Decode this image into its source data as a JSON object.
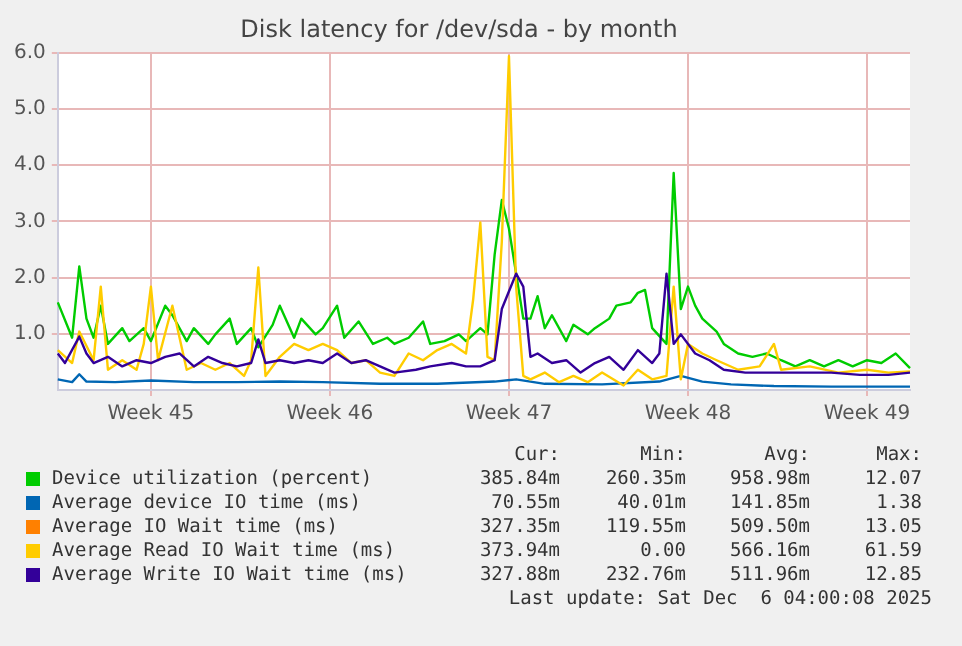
{
  "chart_data": {
    "type": "line",
    "title": "Disk latency for /dev/sda - by month",
    "categories": [
      null,
      null,
      null,
      null,
      null,
      null,
      null,
      null,
      null,
      null,
      null,
      null,
      null,
      "Week 45",
      null,
      null,
      null,
      null,
      null,
      null,
      null,
      null,
      null,
      null,
      null,
      null,
      null,
      null,
      null,
      null,
      null,
      null,
      null,
      null,
      null,
      null,
      null,
      null,
      "Week 46",
      null,
      null,
      null,
      null,
      null,
      null,
      null,
      null,
      null,
      null,
      null,
      null,
      null,
      null,
      null,
      null,
      null,
      null,
      null,
      null,
      null,
      null,
      null,
      null,
      "Week 47",
      null,
      null,
      null,
      null,
      null,
      null,
      null,
      null,
      null,
      null,
      null,
      null,
      null,
      null,
      null,
      null,
      null,
      null,
      null,
      null,
      null,
      null,
      null,
      null,
      "Week 48",
      null,
      null,
      null,
      null,
      null,
      null,
      null,
      null,
      null,
      null,
      null,
      null,
      null,
      null,
      null,
      null,
      null,
      null,
      null,
      null,
      null,
      null,
      null,
      null,
      "Week 49",
      null,
      null,
      null,
      null,
      null,
      null
    ],
    "ylim": [
      0,
      6
    ],
    "yticks": [
      {
        "value": 1,
        "label": "1.0"
      },
      {
        "value": 2,
        "label": "2.0"
      },
      {
        "value": 3,
        "label": "3.0"
      },
      {
        "value": 4,
        "label": "4.0"
      },
      {
        "value": 5,
        "label": "5.0"
      },
      {
        "value": 6,
        "label": "6.0"
      }
    ],
    "grid": true,
    "legend": "bottom",
    "series": [
      {
        "name": "Device utilization (percent)",
        "color": "#00cc00",
        "values": [
          1.56,
          null,
          0.93,
          2.2,
          1.27,
          0.93,
          1.5,
          0.82,
          null,
          1.1,
          0.87,
          null,
          1.1,
          0.87,
          null,
          1.5,
          1.33,
          null,
          0.87,
          1.1,
          null,
          0.82,
          0.99,
          null,
          1.27,
          0.82,
          null,
          1.1,
          0.76,
          null,
          1.16,
          1.5,
          null,
          0.93,
          1.27,
          null,
          0.99,
          1.1,
          null,
          1.5,
          0.93,
          null,
          1.22,
          null,
          0.82,
          null,
          0.93,
          0.82,
          null,
          0.93,
          null,
          1.22,
          0.82,
          null,
          0.87,
          null,
          0.99,
          0.87,
          null,
          1.1,
          0.99,
          2.41,
          3.38,
          2.87,
          2.07,
          1.27,
          1.27,
          1.67,
          1.1,
          1.33,
          null,
          0.87,
          1.16,
          null,
          0.99,
          1.1,
          null,
          1.27,
          1.5,
          null,
          1.56,
          1.73,
          1.78,
          1.1,
          null,
          0.82,
          3.86,
          1.44,
          1.84,
          1.5,
          1.27,
          null,
          1.04,
          0.82,
          null,
          0.65,
          null,
          0.59,
          null,
          0.65,
          null,
          0.53,
          null,
          0.42,
          null,
          0.53,
          null,
          0.42,
          null,
          0.53,
          null,
          0.42,
          null,
          0.53,
          null,
          0.48,
          null,
          0.65,
          null,
          0.39
        ]
      },
      {
        "name": "Average device IO time (ms)",
        "color": "#0066b3",
        "values": [
          0.19,
          null,
          0.14,
          0.28,
          0.15,
          null,
          null,
          null,
          0.14,
          null,
          null,
          null,
          null,
          0.17,
          null,
          null,
          null,
          null,
          null,
          0.14,
          null,
          null,
          null,
          null,
          null,
          0.14,
          null,
          null,
          null,
          null,
          null,
          0.15,
          null,
          null,
          null,
          null,
          null,
          0.14,
          null,
          null,
          null,
          null,
          null,
          null,
          null,
          0.11,
          null,
          null,
          null,
          null,
          null,
          null,
          null,
          0.11,
          null,
          null,
          null,
          null,
          null,
          null,
          null,
          0.15,
          null,
          null,
          0.19,
          null,
          null,
          null,
          0.11,
          null,
          null,
          null,
          null,
          null,
          null,
          null,
          0.1,
          null,
          null,
          null,
          null,
          null,
          null,
          null,
          0.15,
          null,
          null,
          0.25,
          null,
          null,
          0.15,
          null,
          null,
          null,
          0.1,
          null,
          null,
          null,
          null,
          null,
          0.07,
          null,
          null,
          null,
          null,
          null,
          null,
          null,
          0.06,
          null,
          null,
          null,
          null,
          null,
          null,
          null,
          null,
          null,
          null,
          0.06
        ]
      },
      {
        "name": "Average IO Wait time (ms)",
        "color": "#ff8000",
        "values": [
          null,
          null,
          null,
          null,
          null,
          null,
          null,
          null,
          null,
          null,
          null,
          null,
          null,
          null,
          null,
          null,
          null,
          null,
          null,
          null,
          null,
          null,
          null,
          null,
          null,
          null,
          null,
          null,
          null,
          null,
          null,
          null,
          null,
          null,
          null,
          null,
          null,
          null,
          null,
          null,
          null,
          null,
          null,
          null,
          null,
          null,
          null,
          null,
          null,
          null,
          null,
          null,
          null,
          null,
          null,
          null,
          null,
          null,
          null,
          null,
          null,
          null,
          null,
          null,
          null,
          null,
          null,
          null,
          null,
          null,
          null,
          null,
          null,
          null,
          null,
          null,
          null,
          null,
          null,
          null,
          null,
          null,
          null,
          null,
          null,
          null,
          null,
          null,
          null,
          null,
          null,
          null,
          null,
          null,
          null,
          null,
          null,
          null,
          null,
          null,
          null,
          null,
          null,
          null,
          null,
          null,
          null,
          null,
          null,
          null,
          null,
          null,
          null,
          null,
          null,
          null,
          null,
          null,
          null,
          null
        ]
      },
      {
        "name": "Average Read IO Wait time (ms)",
        "color": "#ffcc00",
        "values": [
          0.71,
          null,
          0.48,
          1.04,
          null,
          0.53,
          1.84,
          0.36,
          null,
          0.53,
          null,
          0.36,
          0.82,
          1.84,
          0.53,
          null,
          1.5,
          null,
          0.36,
          null,
          0.48,
          null,
          0.36,
          null,
          0.48,
          null,
          0.25,
          0.53,
          2.18,
          0.25,
          null,
          0.59,
          null,
          0.82,
          null,
          0.71,
          null,
          0.82,
          null,
          0.71,
          null,
          0.48,
          null,
          0.53,
          null,
          0.31,
          null,
          0.25,
          null,
          0.65,
          null,
          0.53,
          null,
          0.71,
          null,
          0.82,
          null,
          0.65,
          1.61,
          2.98,
          0.59,
          0.53,
          2.64,
          5.94,
          1.84,
          0.25,
          0.19,
          null,
          0.31,
          null,
          0.14,
          null,
          0.25,
          null,
          0.14,
          null,
          0.31,
          null,
          null,
          0.08,
          null,
          0.36,
          null,
          0.19,
          null,
          0.25,
          1.84,
          0.19,
          0.82,
          null,
          0.65,
          null,
          0.53,
          null,
          null,
          0.36,
          null,
          null,
          0.42,
          null,
          0.82,
          0.36,
          null,
          null,
          null,
          0.42,
          null,
          null,
          null,
          0.31,
          null,
          null,
          null,
          0.36,
          null,
          null,
          0.31,
          null,
          null,
          0.33
        ]
      },
      {
        "name": "Average Write IO Wait time (ms)",
        "color": "#330099",
        "values": [
          0.65,
          0.48,
          null,
          0.95,
          0.65,
          0.48,
          null,
          0.59,
          null,
          0.42,
          null,
          0.53,
          null,
          0.48,
          null,
          0.59,
          null,
          0.65,
          null,
          0.42,
          null,
          0.59,
          null,
          0.48,
          null,
          0.42,
          null,
          0.48,
          0.9,
          0.48,
          null,
          0.53,
          null,
          0.48,
          null,
          0.53,
          null,
          0.48,
          null,
          0.65,
          null,
          0.48,
          null,
          0.53,
          null,
          0.42,
          null,
          0.31,
          null,
          null,
          0.36,
          null,
          0.42,
          null,
          null,
          0.48,
          null,
          0.42,
          null,
          0.42,
          null,
          0.53,
          1.44,
          null,
          2.07,
          1.84,
          0.59,
          0.65,
          null,
          0.48,
          null,
          0.53,
          null,
          0.31,
          null,
          0.48,
          null,
          0.59,
          null,
          0.36,
          null,
          0.71,
          null,
          0.48,
          0.65,
          2.07,
          0.82,
          0.99,
          null,
          0.65,
          null,
          0.53,
          null,
          0.36,
          null,
          null,
          0.31,
          null,
          null,
          null,
          0.31,
          null,
          null,
          null,
          0.31,
          null,
          null,
          null,
          0.31,
          null,
          null,
          null,
          0.27,
          null,
          null,
          null,
          0.27,
          null,
          null,
          0.31
        ]
      }
    ],
    "annotations": [
      "Cur:",
      "Min:",
      "Avg:",
      "Max:",
      "385.84m",
      "260.35m",
      "958.98m",
      "12.07",
      "70.55m",
      "40.01m",
      "141.85m",
      "1.38",
      "327.35m",
      "119.55m",
      "509.50m",
      "13.05",
      "373.94m",
      "0.00",
      "566.16m",
      "61.59",
      "327.88m",
      "232.76m",
      "511.96m",
      "12.85",
      "Last update: Sat Dec  6 04:00:08 2025"
    ]
  }
}
